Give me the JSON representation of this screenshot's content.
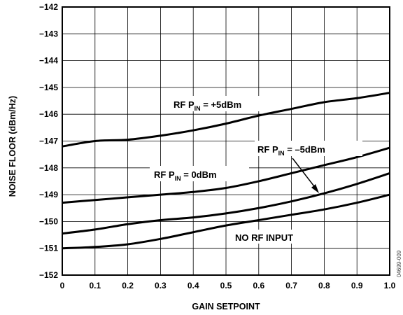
{
  "chart_data": {
    "type": "line",
    "xlabel": "GAIN SETPOINT",
    "ylabel": "NOISE FLOOR (dBm/Hz)",
    "xlim": [
      0,
      1.0
    ],
    "ylim": [
      -152,
      -142
    ],
    "xticks": [
      "0",
      "0.1",
      "0.2",
      "0.3",
      "0.4",
      "0.5",
      "0.6",
      "0.7",
      "0.8",
      "0.9",
      "1.0"
    ],
    "yticks": [
      "−142",
      "−143",
      "−144",
      "−145",
      "−146",
      "−147",
      "−148",
      "−149",
      "−150",
      "−151",
      "−152"
    ],
    "grid": true,
    "x": [
      0,
      0.1,
      0.2,
      0.3,
      0.4,
      0.5,
      0.6,
      0.7,
      0.8,
      0.9,
      1.0
    ],
    "series": [
      {
        "name": "RF P_IN = +5dBm",
        "values": [
          -147.2,
          -147.0,
          -146.95,
          -146.8,
          -146.6,
          -146.35,
          -146.05,
          -145.8,
          -145.55,
          -145.4,
          -145.2
        ]
      },
      {
        "name": "RF P_IN = 0dBm",
        "values": [
          -149.3,
          -149.2,
          -149.1,
          -149.0,
          -148.9,
          -148.75,
          -148.5,
          -148.2,
          -147.9,
          -147.6,
          -147.25
        ]
      },
      {
        "name": "RF P_IN = −5dBm",
        "values": [
          -150.45,
          -150.3,
          -150.1,
          -149.95,
          -149.85,
          -149.7,
          -149.5,
          -149.25,
          -148.95,
          -148.6,
          -148.2
        ]
      },
      {
        "name": "NO RF INPUT",
        "values": [
          -151.0,
          -150.95,
          -150.85,
          -150.65,
          -150.4,
          -150.15,
          -149.95,
          -149.75,
          -149.55,
          -149.3,
          -149.0
        ]
      }
    ],
    "annotations": [
      {
        "main": "RF P",
        "sub": "IN",
        "rest": " = +5dBm"
      },
      {
        "main": "RF P",
        "sub": "IN",
        "rest": " = 0dBm"
      },
      {
        "main": "RF P",
        "sub": "IN",
        "rest": " = –5dBm"
      },
      {
        "main": "NO RF INPUT",
        "sub": "",
        "rest": ""
      }
    ],
    "watermark": "04699-009"
  }
}
